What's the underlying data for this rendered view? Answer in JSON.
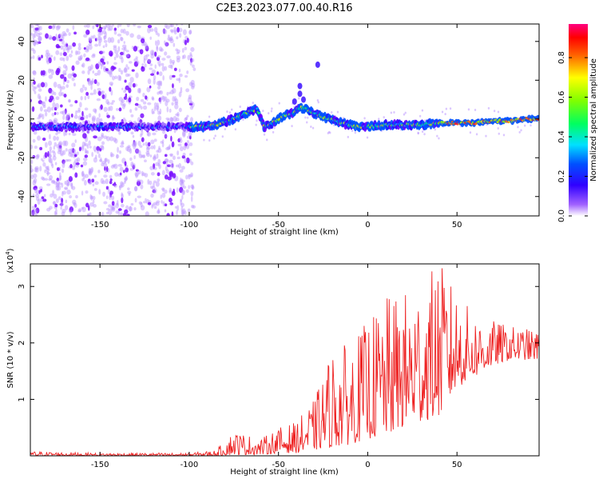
{
  "title": "C2E3.2023.077.00.40.R16",
  "colorbar": {
    "label": "Normalized spectral amplitude",
    "ticks": [
      {
        "value": 0.0,
        "text": "0.0"
      },
      {
        "value": 0.2,
        "text": "0.2"
      },
      {
        "value": 0.4,
        "text": "0.4"
      },
      {
        "value": 0.6,
        "text": "0.6"
      },
      {
        "value": 0.8,
        "text": "0.8"
      }
    ],
    "range": [
      0,
      0.97
    ]
  },
  "chart_data": [
    {
      "type": "heatmap",
      "xlabel": "Height of straight line (km)",
      "ylabel": "Frequency (Hz)",
      "xlim": [
        -189,
        96
      ],
      "ylim": [
        -50,
        49
      ],
      "xticks": [
        -150,
        -100,
        -50,
        0,
        50
      ],
      "yticks": [
        -40,
        -20,
        0,
        20,
        40
      ],
      "ridge": {
        "description_x": [
          -189,
          -175,
          -160,
          -140,
          -120,
          -100,
          -92,
          -85,
          -75,
          -68,
          -62,
          -58,
          -55,
          -50,
          -46,
          -42,
          -38,
          -34,
          -30,
          -25,
          -20,
          -15,
          -10,
          -5,
          0,
          10,
          20,
          30,
          40,
          50,
          60,
          70,
          80,
          90,
          96
        ],
        "frequency_hz": [
          -4,
          -4,
          -4,
          -4,
          -4,
          -4,
          -4,
          -3,
          0,
          3,
          5,
          -4,
          -3,
          0,
          2,
          3,
          6,
          5,
          3,
          1,
          0,
          -2,
          -3,
          -4,
          -4,
          -3,
          -3,
          -3,
          -2,
          -2,
          -2,
          -1,
          -1,
          0,
          0
        ]
      },
      "color_colors": {
        "ridge_low": "#6a00ff",
        "ridge_high": "#ff2020"
      }
    },
    {
      "type": "line",
      "xlabel": "Height of straight line (km)",
      "ylabel": "SNR (10 * v/v)",
      "yscale_label": "(x10^4)",
      "xlim": [
        -189,
        96
      ],
      "ylim": [
        0,
        3.4
      ],
      "xticks": [
        -150,
        -100,
        -50,
        0,
        50
      ],
      "yticks": [
        1,
        2,
        3
      ],
      "series": [
        {
          "name": "SNR",
          "color": "#ee2222",
          "envelope_x": [
            -189,
            -150,
            -100,
            -85,
            -75,
            -60,
            -50,
            -40,
            -30,
            -20,
            -10,
            0,
            10,
            20,
            30,
            40,
            50,
            60,
            70,
            80,
            90,
            96
          ],
          "envelope_min": [
            0.0,
            0.0,
            0.0,
            0.0,
            0.02,
            0.02,
            0.05,
            0.05,
            0.1,
            0.15,
            0.2,
            0.3,
            0.35,
            0.5,
            0.6,
            0.7,
            1.2,
            1.4,
            1.6,
            1.7,
            1.7,
            1.7
          ],
          "envelope_max": [
            0.08,
            0.05,
            0.05,
            0.1,
            0.45,
            0.3,
            0.5,
            0.6,
            1.0,
            1.9,
            2.0,
            2.4,
            2.8,
            2.9,
            3.1,
            3.45,
            2.9,
            2.5,
            2.4,
            2.3,
            2.25,
            2.2
          ]
        }
      ]
    }
  ]
}
